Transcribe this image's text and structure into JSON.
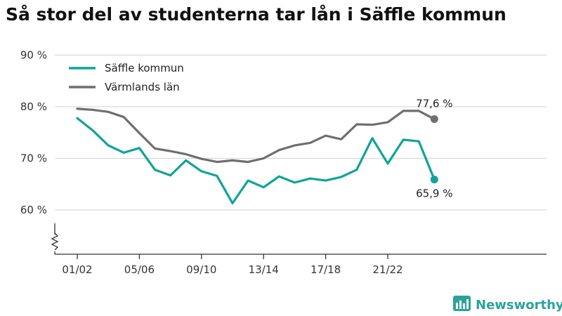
{
  "chart_data": {
    "type": "line",
    "title": "Så stor del av studenterna tar lån i Säffle kommun",
    "x": [
      "01/02",
      "02/03",
      "03/04",
      "04/05",
      "05/06",
      "06/07",
      "07/08",
      "08/09",
      "09/10",
      "10/11",
      "11/12",
      "12/13",
      "13/14",
      "14/15",
      "15/16",
      "16/17",
      "17/18",
      "18/19",
      "19/20",
      "20/21",
      "21/22",
      "22/23",
      "23/24",
      "24/25"
    ],
    "x_tick_labels": [
      "01/02",
      "05/06",
      "09/10",
      "13/14",
      "17/18",
      "21/22"
    ],
    "y_tick_labels": [
      "90 %",
      "80 %",
      "70 %",
      "60 %"
    ],
    "y_ticks": [
      90,
      80,
      70,
      60
    ],
    "ylim": [
      53,
      92
    ],
    "y_axis_break": true,
    "grid": true,
    "legend_position": "top-left",
    "series": [
      {
        "name": "Säffle kommun",
        "color": "#10a399",
        "values": [
          77.8,
          75.4,
          72.5,
          71.1,
          72.0,
          67.8,
          66.7,
          69.6,
          67.5,
          66.6,
          61.3,
          65.7,
          64.4,
          66.5,
          65.3,
          66.1,
          65.7,
          66.4,
          67.8,
          73.9,
          69.0,
          73.6,
          73.3,
          65.9
        ],
        "end_label": "65,9 %"
      },
      {
        "name": "Värmlands län",
        "color": "#6f6f73",
        "values": [
          79.6,
          79.4,
          79.0,
          78.0,
          74.9,
          71.9,
          71.4,
          70.8,
          69.9,
          69.3,
          69.6,
          69.3,
          70.0,
          71.6,
          72.5,
          73.0,
          74.4,
          73.7,
          76.6,
          76.5,
          77.0,
          79.2,
          79.2,
          77.6
        ],
        "end_label": "77,6 %"
      }
    ]
  },
  "branding": {
    "name": "Newsworthy",
    "icon": "newsworthy-logo-icon",
    "color": "#2aa39a"
  },
  "colors": {
    "grid": "#d9d9d9",
    "axis": "#333333",
    "text": "#222222"
  }
}
